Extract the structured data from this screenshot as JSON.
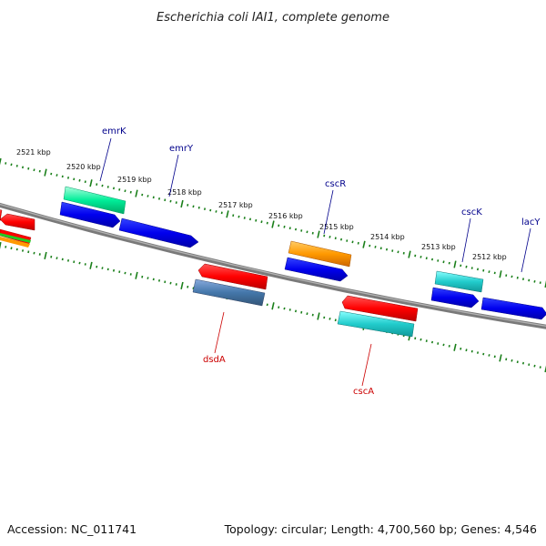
{
  "title": "Escherichia coli IAI1, complete genome",
  "footer": {
    "accession_label": "Accession: NC_011741",
    "summary_label": "Topology: circular; Length: 4,700,560 bp; Genes: 4,546"
  },
  "colors": {
    "backbone": "#7a7a7a",
    "ticks": "#1a7f1a",
    "label_forward": "#00008b",
    "label_reverse": "#cc0000"
  },
  "position_markers": [
    "2521 kbp",
    "2520 kbp",
    "2519 kbp",
    "2518 kbp",
    "2517 kbp",
    "2516 kbp",
    "2515 kbp",
    "2514 kbp",
    "2513 kbp",
    "2512 kbp"
  ],
  "gene_labels": {
    "emrK": "emrK",
    "emrY": "emrY",
    "cscR": "cscR",
    "cscK": "cscK",
    "lacY": "lacY",
    "dsdA": "dsdA",
    "cscA": "cscA"
  }
}
